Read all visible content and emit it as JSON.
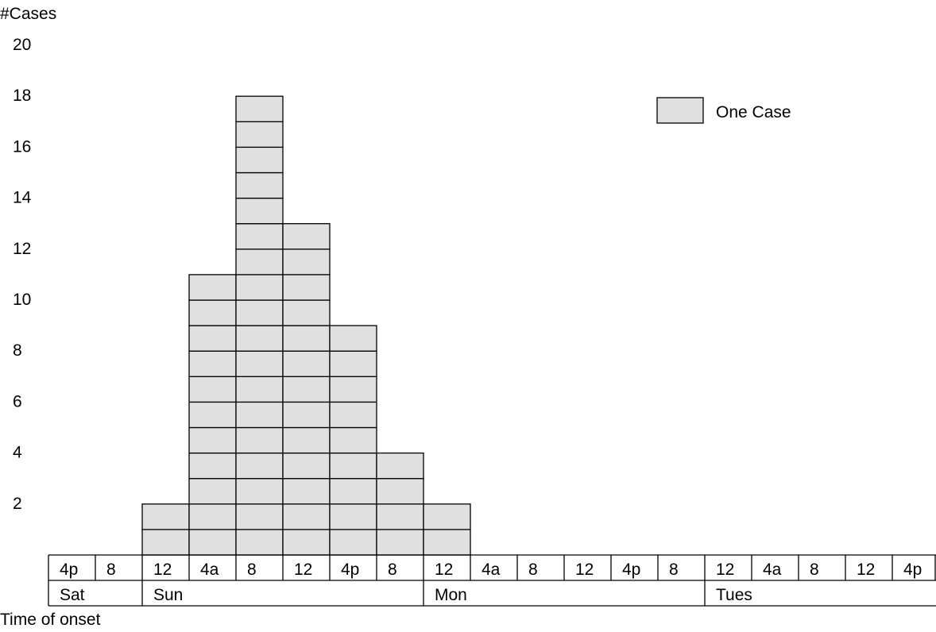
{
  "chart_data": {
    "type": "bar",
    "ylabel": "#Cases",
    "xlabel": "Time of onset",
    "yticks": [
      "2",
      "4",
      "6",
      "8",
      "10",
      "12",
      "14",
      "16",
      "18",
      "20"
    ],
    "time_labels": [
      "4p",
      "8",
      "12",
      "4a",
      "8",
      "12",
      "4p",
      "8",
      "12",
      "4a",
      "8",
      "12",
      "4p",
      "8",
      "12",
      "4a",
      "8",
      "12",
      "4p"
    ],
    "values": [
      0,
      0,
      2,
      11,
      18,
      13,
      9,
      4,
      2,
      0,
      0,
      0,
      0,
      0,
      0,
      0,
      0,
      0,
      0
    ],
    "days": [
      {
        "label": "Sat",
        "start": 0,
        "span": 2
      },
      {
        "label": "Sun",
        "start": 2,
        "span": 6
      },
      {
        "label": "Mon",
        "start": 8,
        "span": 6
      },
      {
        "label": "Tues",
        "start": 14,
        "span": 5
      }
    ],
    "legend": {
      "label": "One Case",
      "position": "top-right"
    },
    "ylim": [
      0,
      20
    ],
    "bar_color": "#e0e0e0"
  }
}
